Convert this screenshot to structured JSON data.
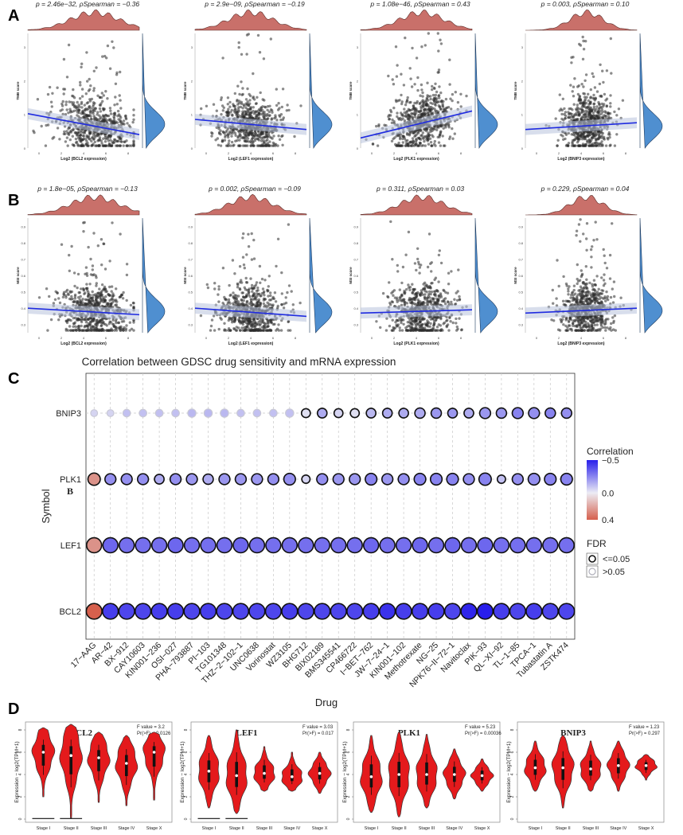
{
  "panel_labels": [
    "A",
    "B",
    "C",
    "D"
  ],
  "colors": {
    "scatter_dot": "#2b2b2b",
    "fit_line": "#1f2be0",
    "ci_band": "#b8c2dc",
    "density_top": "#c9706a",
    "density_right": "#4f8fd0",
    "violin": "#e41a1c",
    "grid": "#c8c8c8"
  },
  "chart_data": [
    {
      "type": "scatter",
      "panel": "A",
      "gene": "BCL2",
      "stat_p": "2.46e−32",
      "stat_rho": "−0.36",
      "stat_text": "p = 2.46e−32, ρSpearman = −0.36",
      "ylabel": "TMB score",
      "xlabel": "Log2 (BCL2 expression)",
      "xlim": [
        -1,
        9
      ],
      "ylim": [
        0,
        3.4
      ],
      "xticks": [
        "0",
        "2",
        "4",
        "6",
        "8"
      ],
      "xtick_values": [
        0,
        2,
        4,
        6,
        8
      ],
      "yticks": [
        "0",
        "1",
        "2",
        "3"
      ],
      "ytick_values": [
        0,
        1,
        2,
        3
      ],
      "fit_start": [
        -1,
        1.02
      ],
      "fit_end": [
        9,
        0.4
      ],
      "x_center": 5.0,
      "x_spread": 2.2
    },
    {
      "type": "scatter",
      "panel": "A",
      "gene": "LEF1",
      "stat_p": "2.9e−09",
      "stat_rho": "−0.19",
      "stat_text": "p = 2.9e−09, ρSpearman = −0.19",
      "ylabel": "TMB score",
      "xlabel": "Log2 (LEF1 expression)",
      "xlim": [
        -1,
        9
      ],
      "ylim": [
        0,
        3.4
      ],
      "xticks": [
        "0",
        "2",
        "4",
        "6",
        "8"
      ],
      "xtick_values": [
        0,
        2,
        4,
        6,
        8
      ],
      "yticks": [
        "0",
        "1",
        "2",
        "3"
      ],
      "ytick_values": [
        0,
        1,
        2,
        3
      ],
      "fit_start": [
        -1,
        0.85
      ],
      "fit_end": [
        9,
        0.55
      ],
      "x_center": 4.0,
      "x_spread": 2.0
    },
    {
      "type": "scatter",
      "panel": "A",
      "gene": "PLK1",
      "stat_p": "1.08e−46",
      "stat_rho": "0.43",
      "stat_text": "p = 1.08e−46, ρSpearman = 0.43",
      "ylabel": "TMB score",
      "xlabel": "Log2 (PLK1 expression)",
      "xlim": [
        -1,
        9
      ],
      "ylim": [
        0,
        3.4
      ],
      "xticks": [
        "0",
        "2",
        "4",
        "6",
        "8"
      ],
      "xtick_values": [
        0,
        2,
        4,
        6,
        8
      ],
      "yticks": [
        "0",
        "1",
        "2",
        "3"
      ],
      "ytick_values": [
        0,
        1,
        2,
        3
      ],
      "fit_start": [
        -1,
        0.3
      ],
      "fit_end": [
        9,
        1.1
      ],
      "x_center": 4.5,
      "x_spread": 2.0
    },
    {
      "type": "scatter",
      "panel": "A",
      "gene": "BNIP3",
      "stat_p": "0.003",
      "stat_rho": "0.10",
      "stat_text": "p = 0.003, ρSpearman = 0.10",
      "ylabel": "TMB score",
      "xlabel": "Log2 (BNIP3 expression)",
      "xlim": [
        -1,
        9
      ],
      "ylim": [
        0,
        3.4
      ],
      "xticks": [
        "0",
        "2",
        "4",
        "6",
        "8"
      ],
      "xtick_values": [
        0,
        2,
        4,
        6,
        8
      ],
      "yticks": [
        "0",
        "1",
        "2",
        "3"
      ],
      "ytick_values": [
        0,
        1,
        2,
        3
      ],
      "fit_start": [
        -1,
        0.55
      ],
      "fit_end": [
        9,
        0.75
      ],
      "x_center": 4.5,
      "x_spread": 1.5
    },
    {
      "type": "scatter",
      "panel": "B",
      "gene": "BCL2",
      "stat_p": "1.8e−05",
      "stat_rho": "−0.13",
      "stat_text": "p = 1.8e−05, ρSpearman = −0.13",
      "ylabel": "MSI score",
      "xlabel": "Log2 (BCL2 expression)",
      "xlim": [
        -1,
        9
      ],
      "ylim": [
        0.25,
        0.95
      ],
      "xticks": [
        "0",
        "2",
        "4",
        "6",
        "8"
      ],
      "xtick_values": [
        0,
        2,
        4,
        6,
        8
      ],
      "yticks": [
        "0.3",
        "0.4",
        "0.5",
        "0.6",
        "0.7",
        "0.8",
        "0.9"
      ],
      "ytick_values": [
        0.3,
        0.4,
        0.5,
        0.6,
        0.7,
        0.8,
        0.9
      ],
      "fit_start": [
        -1,
        0.4
      ],
      "fit_end": [
        9,
        0.36
      ],
      "x_center": 5.0,
      "x_spread": 2.2
    },
    {
      "type": "scatter",
      "panel": "B",
      "gene": "LEF1",
      "stat_p": "0.002",
      "stat_rho": "−0.09",
      "stat_text": "p = 0.002, ρSpearman = −0.09",
      "ylabel": "MSI score",
      "xlabel": "Log2 (LEF1 expression)",
      "xlim": [
        -1,
        9
      ],
      "ylim": [
        0.25,
        0.95
      ],
      "xticks": [
        "0",
        "2",
        "4",
        "6",
        "8"
      ],
      "xtick_values": [
        0,
        2,
        4,
        6,
        8
      ],
      "yticks": [
        "0.3",
        "0.4",
        "0.5",
        "0.6",
        "0.7",
        "0.8",
        "0.9"
      ],
      "ytick_values": [
        0.3,
        0.4,
        0.5,
        0.6,
        0.7,
        0.8,
        0.9
      ],
      "fit_start": [
        -1,
        0.4
      ],
      "fit_end": [
        9,
        0.35
      ],
      "x_center": 4.0,
      "x_spread": 2.0
    },
    {
      "type": "scatter",
      "panel": "B",
      "gene": "PLK1",
      "stat_p": "0.311",
      "stat_rho": "0.03",
      "stat_text": "p = 0.311, ρSpearman = 0.03",
      "ylabel": "MSI score",
      "xlabel": "Log2 (PLK1 expression)",
      "xlim": [
        -1,
        9
      ],
      "ylim": [
        0.25,
        0.95
      ],
      "xticks": [
        "0",
        "2",
        "4",
        "6",
        "8"
      ],
      "xtick_values": [
        0,
        2,
        4,
        6,
        8
      ],
      "yticks": [
        "0.3",
        "0.4",
        "0.5",
        "0.6",
        "0.7",
        "0.8",
        "0.9"
      ],
      "ytick_values": [
        0.3,
        0.4,
        0.5,
        0.6,
        0.7,
        0.8,
        0.9
      ],
      "fit_start": [
        -1,
        0.37
      ],
      "fit_end": [
        9,
        0.39
      ],
      "x_center": 4.5,
      "x_spread": 2.0
    },
    {
      "type": "scatter",
      "panel": "B",
      "gene": "BNIP3",
      "stat_p": "0.229",
      "stat_rho": "0.04",
      "stat_text": "p = 0.229, ρSpearman = 0.04",
      "ylabel": "MSI score",
      "xlabel": "Log2 (BNIP3 expression)",
      "xlim": [
        -1,
        9
      ],
      "ylim": [
        0.25,
        0.95
      ],
      "xticks": [
        "0",
        "2",
        "4",
        "6",
        "8"
      ],
      "xtick_values": [
        0,
        2,
        4,
        6,
        8
      ],
      "yticks": [
        "0.3",
        "0.4",
        "0.5",
        "0.6",
        "0.7",
        "0.8",
        "0.9"
      ],
      "ytick_values": [
        0.3,
        0.4,
        0.5,
        0.6,
        0.7,
        0.8,
        0.9
      ],
      "fit_start": [
        -1,
        0.37
      ],
      "fit_end": [
        9,
        0.4
      ],
      "x_center": 4.5,
      "x_spread": 1.5
    },
    {
      "type": "bubble",
      "panel": "C",
      "title": "Correlation between GDSC drug sensitivity and mRNA expression",
      "xlabel": "Drug",
      "ylabel": "Symbol",
      "stray_label": "B",
      "symbols": [
        "BNIP3",
        "PLK1",
        "LEF1",
        "BCL2"
      ],
      "drugs": [
        "17−AAG",
        "AR−42",
        "BX−912",
        "CAY10603",
        "KIN001−236",
        "OSI−027",
        "PHA−793887",
        "PI−103",
        "TG101348",
        "THZ−2−102−1",
        "UNC0638",
        "Vorinostat",
        "WZ3105",
        "BHG712",
        "BIX02189",
        "BMS345541",
        "CP466722",
        "I−BET−762",
        "JW−7−24−1",
        "KIN001−102",
        "Methotrexate",
        "NG−25",
        "NPK76−II−72−1",
        "Navitoclax",
        "PIK−93",
        "QL−XI−92",
        "TL−1−85",
        "TPCA−1",
        "Tubastatin A",
        "ZSTK474"
      ],
      "correlation": [
        [
          -0.05,
          -0.05,
          -0.1,
          -0.1,
          -0.1,
          -0.1,
          -0.12,
          -0.12,
          -0.12,
          -0.1,
          -0.1,
          -0.1,
          -0.1,
          -0.02,
          -0.15,
          -0.05,
          -0.02,
          -0.12,
          -0.15,
          -0.15,
          -0.15,
          -0.2,
          -0.2,
          -0.15,
          -0.2,
          -0.2,
          -0.25,
          -0.22,
          -0.25,
          -0.22
        ],
        [
          0.25,
          -0.22,
          -0.22,
          -0.22,
          -0.15,
          -0.22,
          -0.2,
          -0.15,
          -0.2,
          -0.2,
          -0.2,
          -0.22,
          -0.22,
          -0.05,
          -0.22,
          -0.2,
          -0.2,
          -0.25,
          -0.2,
          -0.22,
          -0.25,
          -0.25,
          -0.25,
          -0.22,
          -0.25,
          -0.1,
          -0.22,
          -0.22,
          -0.25,
          -0.25
        ],
        [
          0.25,
          -0.32,
          -0.3,
          -0.3,
          -0.3,
          -0.32,
          -0.3,
          -0.3,
          -0.3,
          -0.32,
          -0.3,
          -0.3,
          -0.3,
          -0.3,
          -0.3,
          -0.3,
          -0.3,
          -0.32,
          -0.3,
          -0.3,
          -0.32,
          -0.3,
          -0.32,
          -0.3,
          -0.32,
          -0.3,
          -0.3,
          -0.3,
          -0.3,
          -0.3
        ],
        [
          0.4,
          -0.42,
          -0.4,
          -0.4,
          -0.42,
          -0.42,
          -0.4,
          -0.42,
          -0.4,
          -0.4,
          -0.4,
          -0.4,
          -0.42,
          -0.4,
          -0.4,
          -0.4,
          -0.4,
          -0.42,
          -0.45,
          -0.42,
          -0.42,
          -0.42,
          -0.4,
          -0.48,
          -0.5,
          -0.42,
          -0.4,
          -0.42,
          -0.4,
          -0.4
        ]
      ],
      "fdr_flags": [
        [
          0,
          0,
          0,
          0,
          0,
          0,
          0,
          0,
          0,
          0,
          0,
          0,
          0,
          1,
          1,
          1,
          1,
          1,
          1,
          1,
          1,
          1,
          1,
          1,
          1,
          1,
          1,
          1,
          1,
          1
        ],
        [
          1,
          1,
          1,
          1,
          1,
          1,
          1,
          1,
          1,
          1,
          1,
          1,
          1,
          1,
          1,
          1,
          1,
          1,
          1,
          1,
          1,
          1,
          1,
          1,
          1,
          1,
          1,
          1,
          1,
          1
        ],
        [
          1,
          1,
          1,
          1,
          1,
          1,
          1,
          1,
          1,
          1,
          1,
          1,
          1,
          1,
          1,
          1,
          1,
          1,
          1,
          1,
          1,
          1,
          1,
          1,
          1,
          1,
          1,
          1,
          1,
          1
        ],
        [
          1,
          1,
          1,
          1,
          1,
          1,
          1,
          1,
          1,
          1,
          1,
          1,
          1,
          1,
          1,
          1,
          1,
          1,
          1,
          1,
          1,
          1,
          1,
          1,
          1,
          1,
          1,
          1,
          1,
          1
        ]
      ],
      "bubble_size": [
        [
          0.25,
          0.25,
          0.3,
          0.3,
          0.3,
          0.3,
          0.35,
          0.35,
          0.35,
          0.3,
          0.3,
          0.3,
          0.35,
          0.4,
          0.45,
          0.4,
          0.4,
          0.45,
          0.45,
          0.45,
          0.5,
          0.5,
          0.45,
          0.45,
          0.55,
          0.5,
          0.55,
          0.55,
          0.5,
          0.5
        ],
        [
          0.65,
          0.55,
          0.55,
          0.55,
          0.45,
          0.55,
          0.55,
          0.5,
          0.55,
          0.55,
          0.55,
          0.55,
          0.6,
          0.35,
          0.55,
          0.55,
          0.55,
          0.6,
          0.55,
          0.55,
          0.6,
          0.6,
          0.6,
          0.55,
          0.65,
          0.35,
          0.55,
          0.6,
          0.6,
          0.6
        ],
        [
          0.85,
          0.85,
          0.85,
          0.85,
          0.85,
          0.85,
          0.85,
          0.85,
          0.85,
          0.85,
          0.85,
          0.85,
          0.85,
          0.85,
          0.85,
          0.85,
          0.85,
          0.85,
          0.85,
          0.85,
          0.85,
          0.85,
          0.85,
          0.85,
          0.85,
          0.85,
          0.85,
          0.85,
          0.85,
          0.85
        ],
        [
          0.9,
          0.9,
          0.9,
          0.9,
          0.9,
          0.9,
          0.9,
          0.9,
          0.9,
          0.9,
          0.9,
          0.9,
          0.9,
          0.9,
          0.9,
          0.9,
          0.9,
          0.9,
          0.9,
          0.9,
          0.9,
          0.9,
          0.9,
          0.9,
          0.9,
          0.9,
          0.9,
          0.9,
          0.9,
          0.9
        ]
      ],
      "legend": {
        "correlation_title": "Correlation",
        "correlation_ticks": [
          "−0.5",
          "0.0",
          "0.4"
        ],
        "correlation_tick_values": [
          -0.5,
          0.0,
          0.4
        ],
        "fdr_title": "FDR",
        "fdr_items": [
          "<=0.05",
          ">0.05"
        ]
      }
    },
    {
      "type": "violin",
      "panel": "D",
      "categories": [
        "Stage I",
        "Stage II",
        "Stage III",
        "Stage IV",
        "Stage X"
      ],
      "ylabel": "Expression − log2(TPM+1)",
      "ylim": [
        0,
        8
      ],
      "yticks": [
        "0",
        "2",
        "4",
        "6",
        "8"
      ],
      "ytick_values": [
        0,
        2,
        4,
        6,
        8
      ],
      "plots": [
        {
          "gene": "BCL2",
          "f_value": "F value = 3.2",
          "pr_f": "Pr(>F) = 0.0126",
          "medians": [
            6.0,
            5.7,
            5.5,
            5.0,
            6.0
          ],
          "low": [
            2.0,
            0.1,
            1.5,
            1.2,
            1.7
          ],
          "high": [
            8.2,
            8.5,
            7.8,
            7.5,
            7.8
          ],
          "zero_line": [
            true,
            true,
            false,
            false,
            false
          ]
        },
        {
          "gene": "LEF1",
          "f_value": "F value = 3.03",
          "pr_f": "Pr(>F) = 0.017",
          "medians": [
            4.3,
            3.9,
            4.1,
            3.8,
            4.1
          ],
          "low": [
            1.0,
            0.5,
            2.5,
            2.5,
            2.3
          ],
          "high": [
            7.5,
            8.0,
            6.5,
            6.0,
            6.0
          ],
          "zero_line": [
            true,
            true,
            false,
            false,
            false
          ]
        },
        {
          "gene": "PLK1",
          "f_value": "F value = 5.23",
          "pr_f": "Pr(>F) = 0.00036",
          "medians": [
            3.8,
            4.0,
            4.0,
            4.0,
            3.9
          ],
          "low": [
            0.6,
            0.2,
            1.0,
            1.8,
            2.5
          ],
          "high": [
            7.5,
            7.8,
            7.6,
            6.3,
            5.4
          ],
          "zero_line": [
            false,
            false,
            false,
            false,
            false
          ]
        },
        {
          "gene": "BNIP3",
          "f_value": "F value = 1.23",
          "pr_f": "Pr(>F) = 0.297",
          "medians": [
            4.6,
            4.6,
            4.5,
            4.8,
            4.8
          ],
          "low": [
            2.5,
            1.0,
            2.5,
            2.5,
            3.5
          ],
          "high": [
            7.0,
            7.5,
            7.0,
            7.0,
            5.8
          ],
          "zero_line": [
            false,
            false,
            false,
            false,
            false
          ]
        }
      ]
    }
  ]
}
